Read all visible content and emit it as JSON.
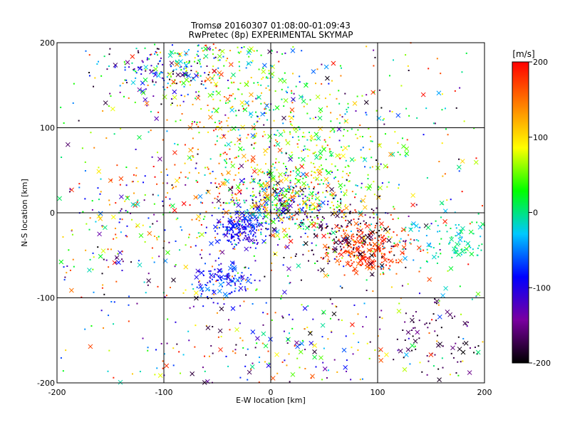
{
  "chart_data": {
    "type": "scatter",
    "title": "Tromsø 20160307 01:08:00-01:09:43",
    "subtitle": "RwPretec (8p) EXPERIMENTAL SKYMAP",
    "xlabel": "E-W location [km]",
    "ylabel": "N-S location [km]",
    "xlim": [
      -200,
      200
    ],
    "ylim": [
      -200,
      200
    ],
    "xticks": [
      -200,
      -100,
      0,
      100,
      200
    ],
    "yticks": [
      -200,
      -100,
      0,
      100,
      200
    ],
    "xtick_labels": [
      "-200",
      "-100",
      "0",
      "100",
      "200"
    ],
    "ytick_labels": [
      "-200",
      "-100",
      "0",
      "100",
      "200"
    ],
    "grid": true,
    "marker_types": [
      "dot",
      "cross"
    ],
    "colorbar": {
      "label": "[m/s]",
      "range": [
        -200,
        200
      ],
      "ticks": [
        200,
        100,
        0,
        -100,
        -200
      ],
      "tick_labels": [
        "200",
        "100",
        "0",
        "-100",
        "-200"
      ],
      "colors": [
        "#000000",
        "#7a00a0",
        "#0000ff",
        "#00c8ff",
        "#00ff00",
        "#ffff00",
        "#ff8000",
        "#ff0000"
      ]
    },
    "clusters": [
      {
        "x": -95,
        "y": 170,
        "sx": 30,
        "sy": 22,
        "n": 210,
        "vmin": -200,
        "vmax": 60
      },
      {
        "x": -60,
        "y": 160,
        "sx": 30,
        "sy": 30,
        "n": 90,
        "vmin": 40,
        "vmax": 200
      },
      {
        "x": -40,
        "y": 40,
        "sx": 50,
        "sy": 40,
        "n": 160,
        "vmin": 100,
        "vmax": 200
      },
      {
        "x": 10,
        "y": 10,
        "sx": 30,
        "sy": 18,
        "n": 380,
        "vmin": -200,
        "vmax": 200
      },
      {
        "x": 40,
        "y": 60,
        "sx": 45,
        "sy": 45,
        "n": 330,
        "vmin": -20,
        "vmax": 120
      },
      {
        "x": 90,
        "y": -40,
        "sx": 18,
        "sy": 14,
        "n": 260,
        "vmin": 150,
        "vmax": 200
      },
      {
        "x": 70,
        "y": -30,
        "sx": 25,
        "sy": 20,
        "n": 130,
        "vmin": -200,
        "vmax": -160
      },
      {
        "x": -30,
        "y": -20,
        "sx": 12,
        "sy": 10,
        "n": 180,
        "vmin": -120,
        "vmax": -60
      },
      {
        "x": -45,
        "y": -80,
        "sx": 14,
        "sy": 12,
        "n": 120,
        "vmin": -120,
        "vmax": -40
      },
      {
        "x": 170,
        "y": -30,
        "sx": 25,
        "sy": 18,
        "n": 120,
        "vmin": -40,
        "vmax": 20
      },
      {
        "x": 155,
        "y": -150,
        "sx": 20,
        "sy": 25,
        "n": 70,
        "vmin": -200,
        "vmax": -150
      },
      {
        "x": 20,
        "y": -170,
        "sx": 60,
        "sy": 25,
        "n": 130,
        "vmin": -200,
        "vmax": 200
      },
      {
        "x": -140,
        "y": -20,
        "sx": 40,
        "sy": 40,
        "n": 110,
        "vmin": -200,
        "vmax": 200
      },
      {
        "x": -10,
        "y": 140,
        "sx": 30,
        "sy": 30,
        "n": 120,
        "vmin": -60,
        "vmax": 140
      },
      {
        "x": 0,
        "y": 0,
        "sx": 140,
        "sy": 140,
        "n": 1000,
        "vmin": -200,
        "vmax": 200
      }
    ]
  }
}
